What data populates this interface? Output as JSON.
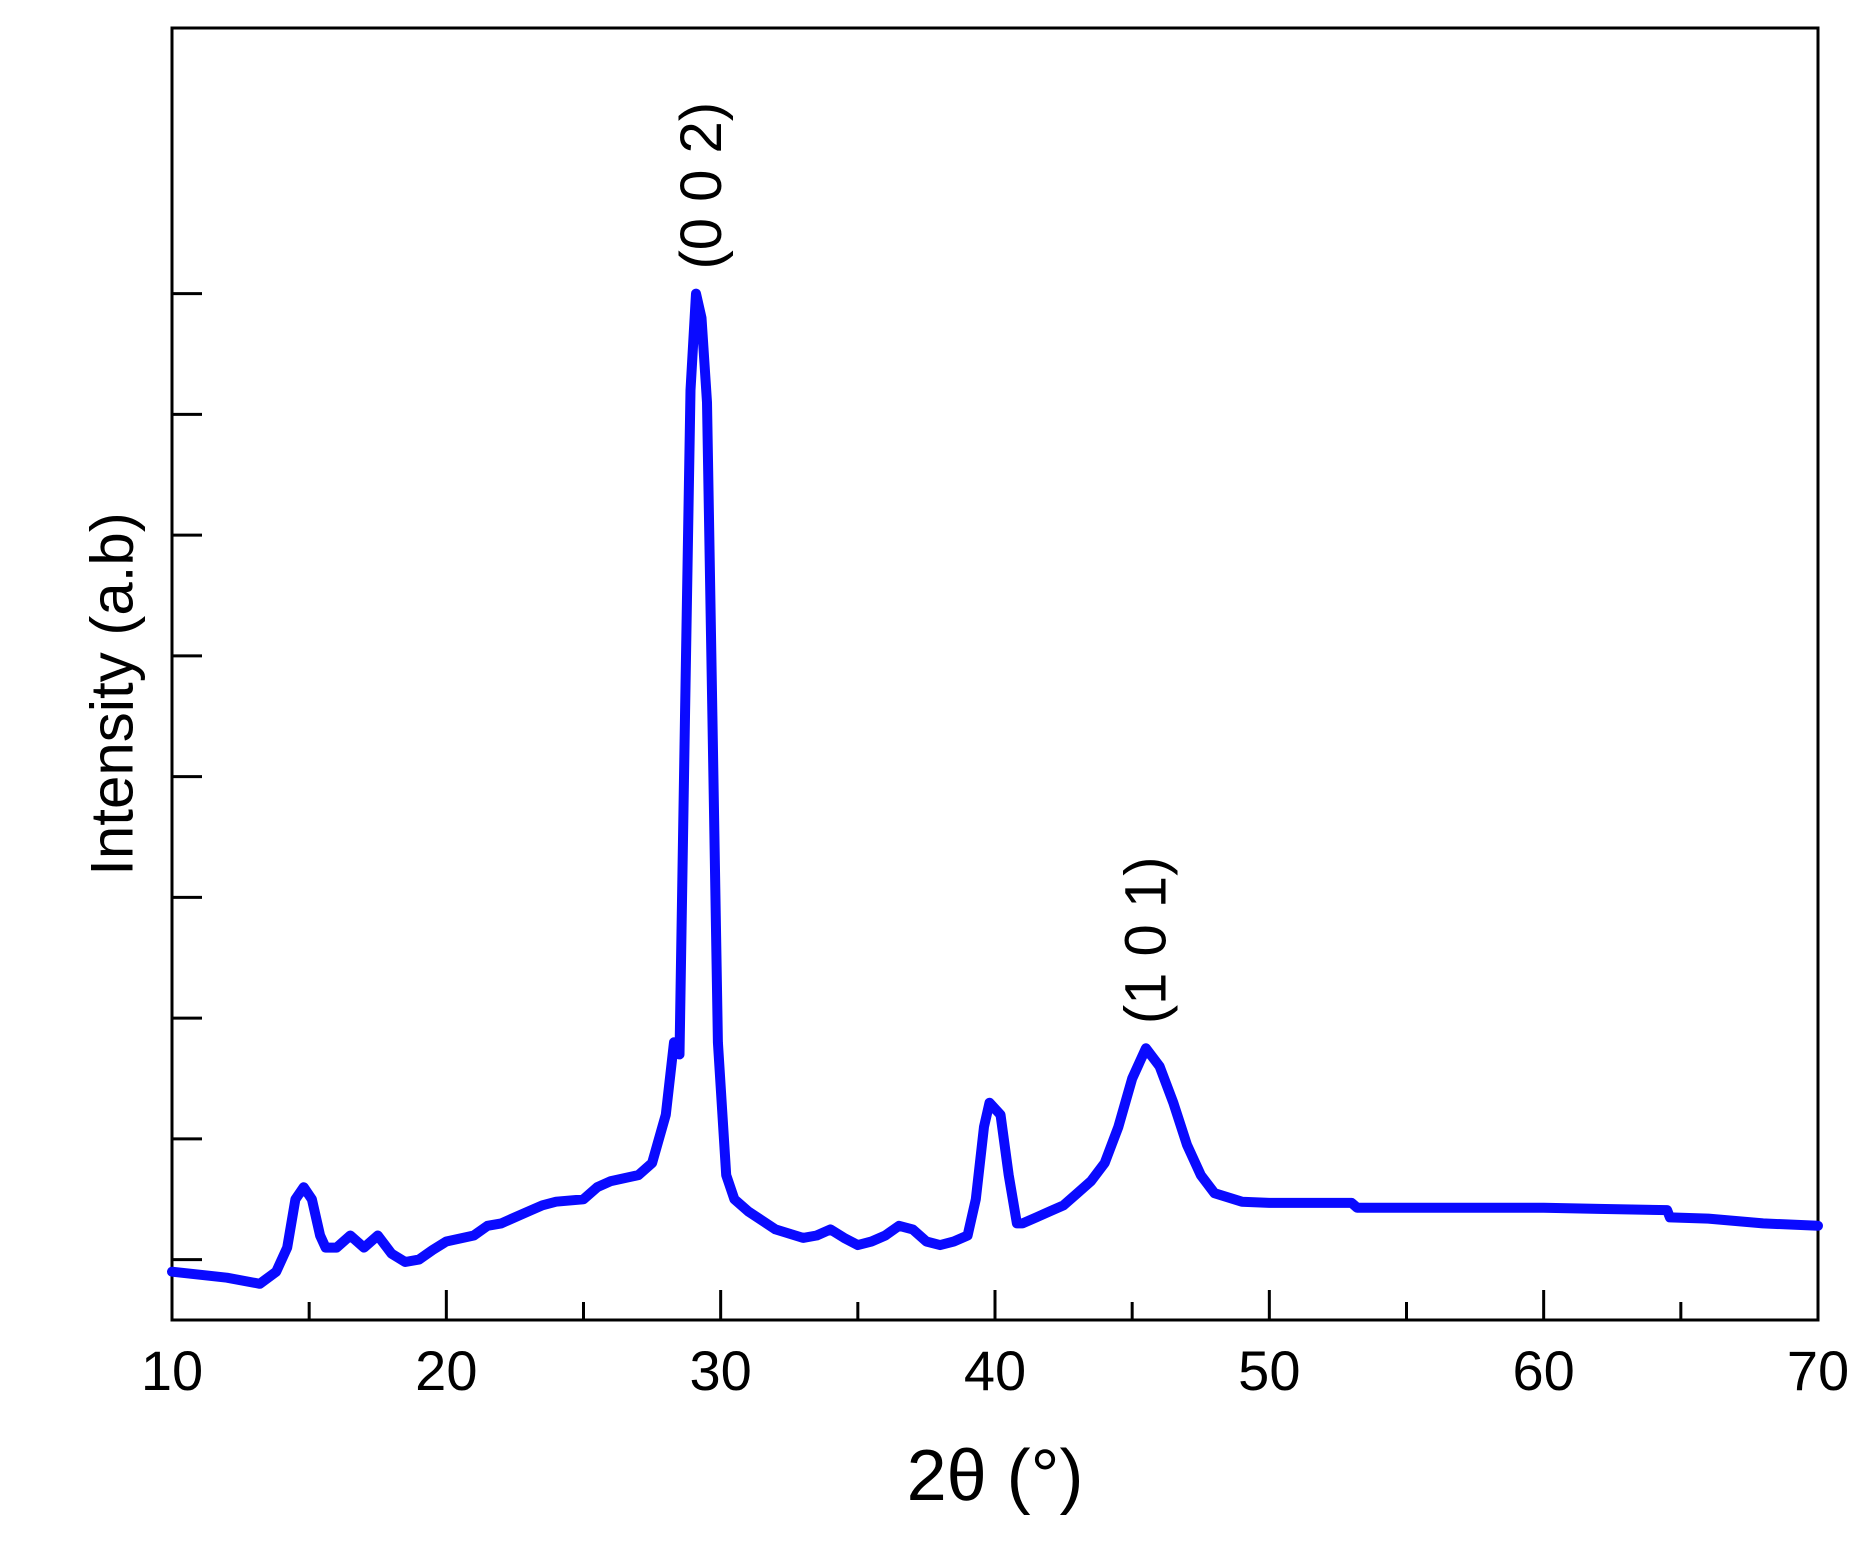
{
  "chart_data": {
    "type": "line",
    "xlabel": "2θ (°)",
    "ylabel": "Intensity (a.b)",
    "xlim": [
      10,
      70
    ],
    "ylim": [
      -0.5,
      10.2
    ],
    "xticks": [
      10,
      20,
      30,
      40,
      50,
      60,
      70
    ],
    "xtick_labels": [
      "10",
      "20",
      "30",
      "40",
      "50",
      "60",
      "70"
    ],
    "grid": false,
    "legend": "none",
    "series": [
      {
        "color": "#0a0aff",
        "x": [
          10,
          12,
          13.2,
          13.8,
          14.2,
          14.5,
          14.8,
          15.1,
          15.4,
          15.6,
          16,
          16.5,
          17,
          17.5,
          18,
          18.5,
          19,
          19.5,
          20,
          21,
          21.5,
          22,
          23,
          23.5,
          24,
          25,
          25.5,
          26,
          27,
          27.5,
          28,
          28.3,
          28.5,
          28.7,
          28.9,
          29.1,
          29.3,
          29.5,
          29.7,
          29.9,
          30.2,
          30.5,
          31,
          32,
          33,
          33.5,
          34,
          34.5,
          35,
          35.5,
          36,
          36.5,
          37,
          37.5,
          38,
          38.5,
          39,
          39.3,
          39.6,
          39.8,
          40,
          40.2,
          40.5,
          40.8,
          41,
          41.5,
          42,
          42.5,
          43,
          43.5,
          44,
          44.5,
          45,
          45.5,
          46,
          46.5,
          47,
          47.5,
          48,
          49,
          50,
          53,
          53.2,
          55,
          60,
          62,
          64.5,
          64.6,
          66,
          68,
          70
        ],
        "y": [
          -0.1,
          -0.15,
          -0.2,
          -0.1,
          0.1,
          0.5,
          0.6,
          0.5,
          0.2,
          0.1,
          0.1,
          0.2,
          0.1,
          0.2,
          0.05,
          -0.02,
          0.0,
          0.08,
          0.15,
          0.2,
          0.28,
          0.3,
          0.4,
          0.45,
          0.48,
          0.5,
          0.6,
          0.65,
          0.7,
          0.8,
          1.2,
          1.8,
          1.7,
          4.5,
          7.2,
          8.0,
          7.8,
          7.1,
          4.5,
          1.8,
          0.7,
          0.5,
          0.4,
          0.25,
          0.18,
          0.2,
          0.25,
          0.18,
          0.12,
          0.15,
          0.2,
          0.28,
          0.25,
          0.15,
          0.12,
          0.15,
          0.2,
          0.5,
          1.1,
          1.3,
          1.25,
          1.2,
          0.7,
          0.3,
          0.3,
          0.35,
          0.4,
          0.45,
          0.55,
          0.65,
          0.8,
          1.1,
          1.5,
          1.75,
          1.6,
          1.3,
          0.95,
          0.7,
          0.55,
          0.48,
          0.47,
          0.47,
          0.43,
          0.43,
          0.43,
          0.42,
          0.41,
          0.35,
          0.34,
          0.3,
          0.28
        ]
      }
    ],
    "annotations": [
      {
        "text": "(0 0 2)",
        "x": 29.3,
        "y": 8.2,
        "rotation": -90
      },
      {
        "text": "(1 0 1)",
        "x": 45.5,
        "y": 1.95,
        "rotation": -90
      }
    ]
  }
}
